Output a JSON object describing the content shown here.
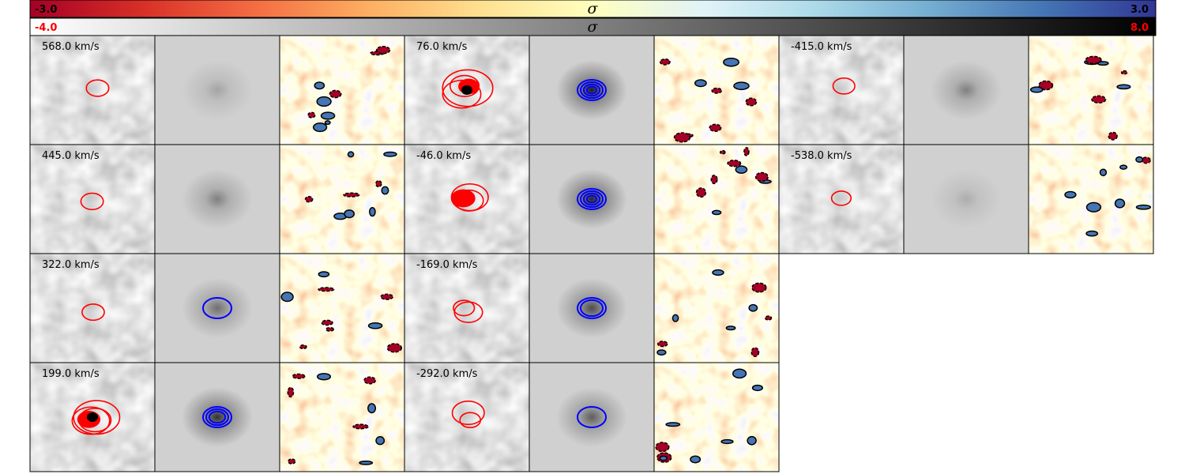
{
  "chart_data": {
    "type": "heatmap",
    "description_free": true,
    "colorbars": [
      {
        "name": "residual",
        "label": "σ",
        "min_label": "-3.0",
        "max_label": "3.0",
        "min_color": "#000000",
        "max_color": "#000000",
        "cmap": "RdYlBu",
        "range": [
          -3.0,
          3.0
        ]
      },
      {
        "name": "data",
        "label": "σ",
        "min_label": "-4.0",
        "max_label": "8.0",
        "min_color": "#ff0000",
        "max_color": "#ff0000",
        "cmap": "gray_r",
        "range": [
          -4.0,
          8.0
        ]
      }
    ],
    "panel_triplets": [
      {
        "velocity": "568.0 km/s",
        "model_strength": 0.25,
        "red_contours": 1,
        "blue_contours": 0
      },
      {
        "velocity": "445.0 km/s",
        "model_strength": 0.45,
        "red_contours": 1,
        "blue_contours": 0
      },
      {
        "velocity": "322.0 km/s",
        "model_strength": 0.55,
        "red_contours": 1,
        "blue_contours": 1
      },
      {
        "velocity": "199.0 km/s",
        "model_strength": 0.9,
        "red_contours": 4,
        "blue_contours": 3
      },
      {
        "velocity": "76.0 km/s",
        "model_strength": 1.0,
        "red_contours": 4,
        "blue_contours": 4
      },
      {
        "velocity": "-46.0 km/s",
        "model_strength": 0.95,
        "red_contours": 3,
        "blue_contours": 4
      },
      {
        "velocity": "-169.0 km/s",
        "model_strength": 0.75,
        "red_contours": 2,
        "blue_contours": 2
      },
      {
        "velocity": "-292.0 km/s",
        "model_strength": 0.65,
        "red_contours": 2,
        "blue_contours": 1
      },
      {
        "velocity": "-415.0 km/s",
        "model_strength": 0.45,
        "red_contours": 1,
        "blue_contours": 0
      },
      {
        "velocity": "-538.0 km/s",
        "model_strength": 0.2,
        "red_contours": 1,
        "blue_contours": 0
      }
    ],
    "colors": {
      "data_contour": "#ff0000",
      "model_contour": "#0000ff",
      "residual_contour": "#000000"
    }
  }
}
